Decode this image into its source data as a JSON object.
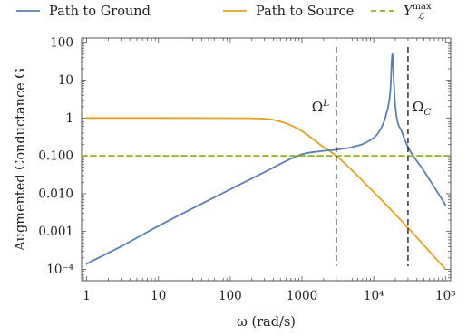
{
  "chart_data": {
    "type": "line",
    "xlabel": "ω (rad/s)",
    "ylabel": "Augmented Conductance G",
    "x_scale": "log",
    "y_scale": "log",
    "xlim": [
      0.85,
      118000
    ],
    "ylim": [
      5e-05,
      130
    ],
    "x_ticks": [
      {
        "value": 1,
        "label": "1"
      },
      {
        "value": 10,
        "label": "10"
      },
      {
        "value": 100,
        "label": "100"
      },
      {
        "value": 1000,
        "label": "1000"
      },
      {
        "value": 10000,
        "label": "10⁴"
      },
      {
        "value": 100000,
        "label": "10⁵"
      }
    ],
    "y_ticks": [
      {
        "value": 0.0001,
        "label": "10⁻⁴"
      },
      {
        "value": 0.001,
        "label": "0.001"
      },
      {
        "value": 0.01,
        "label": "0.010"
      },
      {
        "value": 0.1,
        "label": "0.100"
      },
      {
        "value": 1,
        "label": "1"
      },
      {
        "value": 10,
        "label": "10"
      },
      {
        "value": 100,
        "label": "100"
      }
    ],
    "legend_position": "top",
    "series": [
      {
        "name": "Path to Ground",
        "color": "#5b7fae",
        "style": "solid",
        "points": [
          [
            1,
            0.00014
          ],
          [
            3,
            0.0004
          ],
          [
            10,
            0.0014
          ],
          [
            30,
            0.0041
          ],
          [
            100,
            0.013
          ],
          [
            300,
            0.037
          ],
          [
            1000,
            0.11
          ],
          [
            2000,
            0.135
          ],
          [
            3000,
            0.145
          ],
          [
            5000,
            0.17
          ],
          [
            8000,
            0.23
          ],
          [
            12000,
            0.45
          ],
          [
            15000,
            1.3
          ],
          [
            17000,
            5
          ],
          [
            18200,
            50
          ],
          [
            19000,
            10
          ],
          [
            20000,
            2
          ],
          [
            25000,
            0.4
          ],
          [
            30000,
            0.17
          ],
          [
            50000,
            0.04
          ],
          [
            100000,
            0.005
          ]
        ]
      },
      {
        "name": "Path to Source",
        "color": "#e0a228",
        "style": "solid",
        "points": [
          [
            1,
            1
          ],
          [
            10,
            1
          ],
          [
            100,
            0.99
          ],
          [
            300,
            0.96
          ],
          [
            600,
            0.72
          ],
          [
            1000,
            0.45
          ],
          [
            2000,
            0.17
          ],
          [
            3000,
            0.1
          ],
          [
            10000,
            0.011
          ],
          [
            30000,
            0.00125
          ],
          [
            100000,
            0.0001
          ]
        ]
      },
      {
        "name": "Y_L^max",
        "legend_label": "Y",
        "legend_sub": "ℒ",
        "legend_sup": "max",
        "color": "#8db02e",
        "style": "dashed",
        "points": [
          [
            0.85,
            0.1
          ],
          [
            118000,
            0.1
          ]
        ]
      }
    ],
    "vlines": [
      {
        "x": 3000,
        "label": "Ω",
        "label_sup": "L",
        "label_side": "left"
      },
      {
        "x": 30000,
        "label": "Ω",
        "label_sub": "C",
        "label_side": "right"
      }
    ]
  }
}
